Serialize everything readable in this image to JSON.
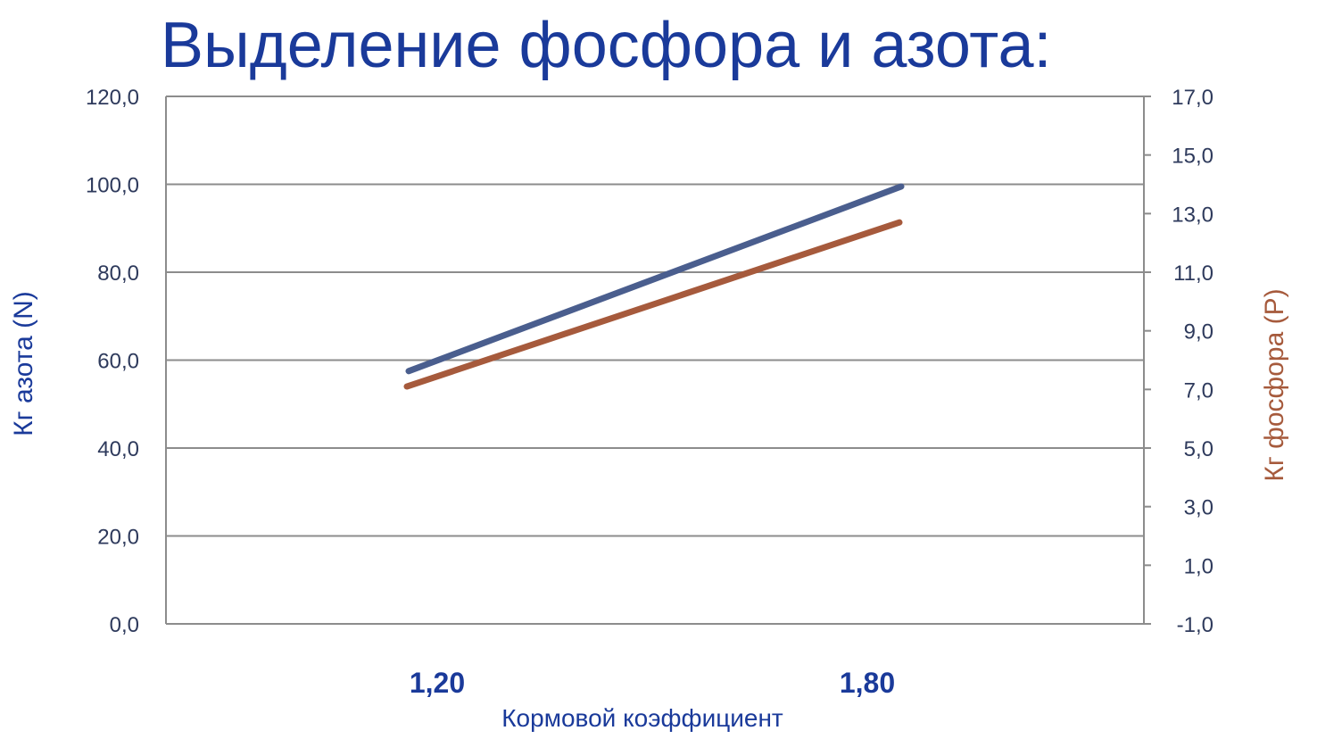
{
  "title": "Выделение фосфора и азота:",
  "colors": {
    "title": "#1a3a9a",
    "axis_text": "#2e3a5c",
    "nitrogen": "#4a5e8e",
    "phosphorus": "#a65a3c",
    "grid": "#8c8c8c"
  },
  "chart_data": {
    "type": "line",
    "title": "Выделение фосфора и азота:",
    "categories": [
      "1,20",
      "1,80"
    ],
    "xlabel": "Кормовой коэффициент",
    "ylabel": "Кг азота (N)",
    "ylabel_right": "Кг фосфора (P)",
    "ylim": [
      0,
      120
    ],
    "ylim_right": [
      -1,
      17
    ],
    "yticks": [
      "0,0",
      "20,0",
      "40,0",
      "60,0",
      "80,0",
      "100,0",
      "120,0"
    ],
    "yticks_right": [
      "-1,0",
      "1,0",
      "3,0",
      "5,0",
      "7,0",
      "9,0",
      "11,0",
      "13,0",
      "15,0",
      "17,0"
    ],
    "grid": true,
    "legend": "none",
    "series": [
      {
        "axis": "left",
        "color": "#4a5e8e",
        "values": [
          57.5,
          99.5
        ]
      },
      {
        "axis": "right",
        "color": "#a65a3c",
        "values": [
          7.1,
          12.7
        ]
      }
    ]
  }
}
